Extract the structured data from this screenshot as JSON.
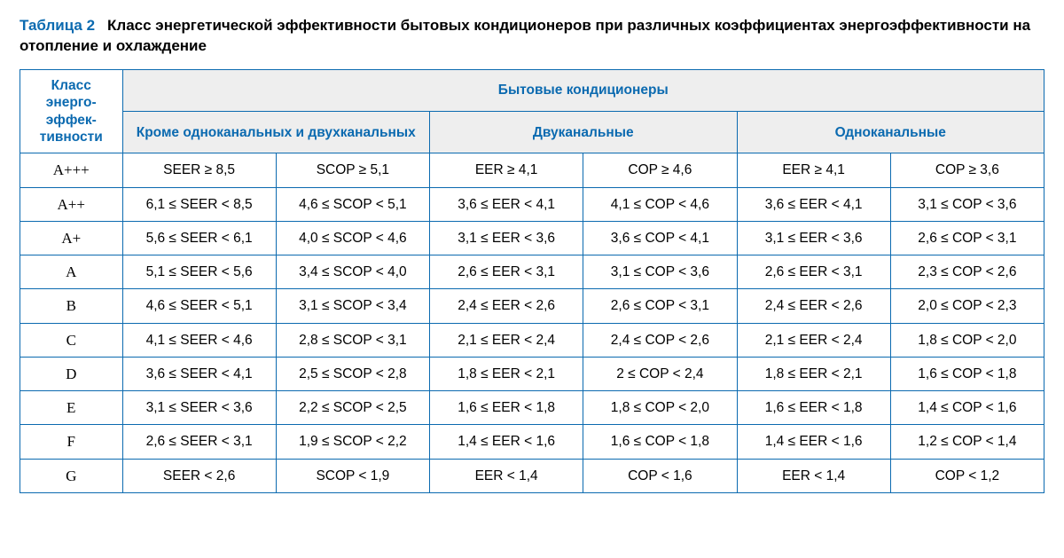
{
  "caption": {
    "label": "Таблица 2",
    "title": "Класс энергетической эффективности бытовых кондиционеров при различных коэффициентах энергоэффективности на отопление и охлаждение"
  },
  "colors": {
    "accent": "#0b6ab0",
    "border": "#0b6ab0",
    "header_shade": "#eeeeee",
    "background": "#ffffff",
    "text": "#000000"
  },
  "typography": {
    "caption_fontsize": 17,
    "cell_fontsize": 15.5,
    "class_font_family": "Times New Roman"
  },
  "table": {
    "header": {
      "class_col": "Класс энерго-эффек-тивности",
      "supergroup": "Бытовые кондиционеры",
      "groups": [
        "Кроме одноканальных и двухканальных",
        "Двуканальные",
        "Одноканальные"
      ]
    },
    "column_widths_pct": [
      10,
      15,
      15,
      15,
      15,
      15,
      15
    ],
    "rows": [
      {
        "klass": "A+++",
        "cells": [
          "SEER ≥ 8,5",
          "SCOP ≥ 5,1",
          "EER ≥ 4,1",
          "COP ≥ 4,6",
          "EER ≥ 4,1",
          "COP ≥ 3,6"
        ]
      },
      {
        "klass": "A++",
        "cells": [
          "6,1 ≤ SEER < 8,5",
          "4,6 ≤ SCOP < 5,1",
          "3,6 ≤ EER < 4,1",
          "4,1 ≤ COP < 4,6",
          "3,6 ≤ EER < 4,1",
          "3,1 ≤ COP < 3,6"
        ]
      },
      {
        "klass": "A+",
        "cells": [
          "5,6 ≤ SEER < 6,1",
          "4,0 ≤ SCOP < 4,6",
          "3,1 ≤ EER < 3,6",
          "3,6 ≤ COP < 4,1",
          "3,1 ≤ EER < 3,6",
          "2,6 ≤ COP < 3,1"
        ]
      },
      {
        "klass": "A",
        "cells": [
          "5,1 ≤ SEER < 5,6",
          "3,4 ≤ SCOP < 4,0",
          "2,6 ≤ EER < 3,1",
          "3,1 ≤ COP < 3,6",
          "2,6 ≤ EER < 3,1",
          "2,3 ≤ COP < 2,6"
        ]
      },
      {
        "klass": "B",
        "cells": [
          "4,6 ≤ SEER < 5,1",
          "3,1 ≤ SCOP < 3,4",
          "2,4 ≤ EER < 2,6",
          "2,6 ≤ COP < 3,1",
          "2,4 ≤ EER < 2,6",
          "2,0 ≤ COP < 2,3"
        ]
      },
      {
        "klass": "C",
        "cells": [
          "4,1 ≤ SEER < 4,6",
          "2,8 ≤ SCOP < 3,1",
          "2,1 ≤ EER < 2,4",
          "2,4 ≤ COP < 2,6",
          "2,1 ≤ EER < 2,4",
          "1,8 ≤ COP < 2,0"
        ]
      },
      {
        "klass": "D",
        "cells": [
          "3,6 ≤ SEER < 4,1",
          "2,5 ≤ SCOP < 2,8",
          "1,8 ≤ EER < 2,1",
          "2 ≤ COP < 2,4",
          "1,8 ≤ EER < 2,1",
          "1,6 ≤ COP < 1,8"
        ]
      },
      {
        "klass": "E",
        "cells": [
          "3,1 ≤ SEER < 3,6",
          "2,2 ≤ SCOP < 2,5",
          "1,6 ≤ EER < 1,8",
          "1,8 ≤ COP < 2,0",
          "1,6 ≤ EER < 1,8",
          "1,4 ≤ COP < 1,6"
        ]
      },
      {
        "klass": "F",
        "cells": [
          "2,6 ≤ SEER < 3,1",
          "1,9 ≤ SCOP < 2,2",
          "1,4 ≤ EER < 1,6",
          "1,6 ≤ COP < 1,8",
          "1,4 ≤ EER < 1,6",
          "1,2 ≤ COP < 1,4"
        ]
      },
      {
        "klass": "G",
        "cells": [
          "SEER < 2,6",
          "SCOP < 1,9",
          "EER < 1,4",
          "COP < 1,6",
          "EER < 1,4",
          "COP < 1,2"
        ]
      }
    ]
  }
}
